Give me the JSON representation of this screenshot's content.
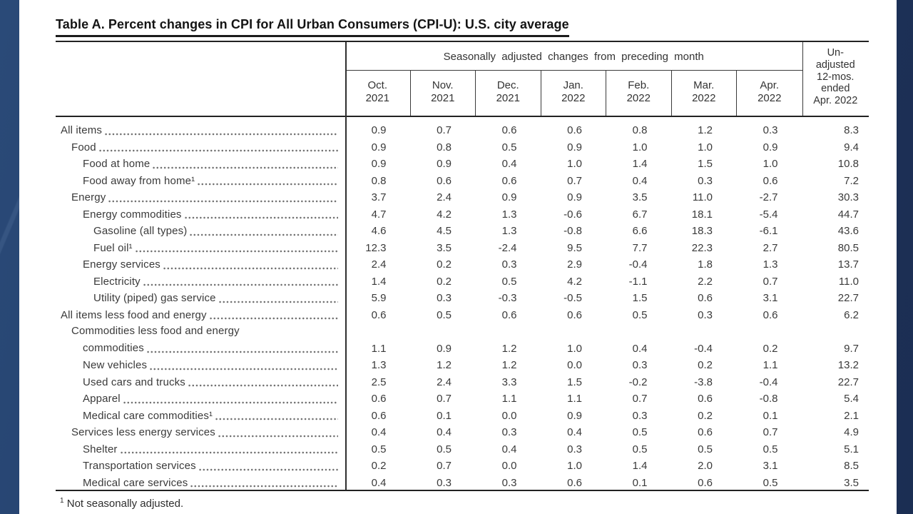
{
  "page": {
    "title": "Table A. Percent changes in CPI for All Urban Consumers (CPI-U): U.S. city average",
    "footnote_marker": "1",
    "footnote_text": " Not seasonally adjusted."
  },
  "colors": {
    "backdrop_navy": "#213a63",
    "backdrop_right_strip": "#1e3560",
    "page_background": "#ffffff",
    "rule_color": "#222222",
    "body_text": "#3a3a3a"
  },
  "table": {
    "spanner_label": "Seasonally adjusted changes from preceding month",
    "month_headers": [
      {
        "line1": "Oct.",
        "line2": "2021"
      },
      {
        "line1": "Nov.",
        "line2": "2021"
      },
      {
        "line1": "Dec.",
        "line2": "2021"
      },
      {
        "line1": "Jan.",
        "line2": "2022"
      },
      {
        "line1": "Feb.",
        "line2": "2022"
      },
      {
        "line1": "Mar.",
        "line2": "2022"
      },
      {
        "line1": "Apr.",
        "line2": "2022"
      }
    ],
    "unadjusted_header_lines": [
      "Un-",
      "adjusted",
      "12-mos.",
      "ended",
      "Apr. 2022"
    ],
    "rows": [
      {
        "label": "All items",
        "indent": 0,
        "values": [
          "0.9",
          "0.7",
          "0.6",
          "0.6",
          "0.8",
          "1.2",
          "0.3",
          "8.3"
        ]
      },
      {
        "label": "Food",
        "indent": 1,
        "values": [
          "0.9",
          "0.8",
          "0.5",
          "0.9",
          "1.0",
          "1.0",
          "0.9",
          "9.4"
        ]
      },
      {
        "label": "Food at home",
        "indent": 2,
        "values": [
          "0.9",
          "0.9",
          "0.4",
          "1.0",
          "1.4",
          "1.5",
          "1.0",
          "10.8"
        ]
      },
      {
        "label": "Food away from home¹",
        "indent": 2,
        "values": [
          "0.8",
          "0.6",
          "0.6",
          "0.7",
          "0.4",
          "0.3",
          "0.6",
          "7.2"
        ]
      },
      {
        "label": "Energy",
        "indent": 1,
        "values": [
          "3.7",
          "2.4",
          "0.9",
          "0.9",
          "3.5",
          "11.0",
          "-2.7",
          "30.3"
        ]
      },
      {
        "label": "Energy commodities",
        "indent": 2,
        "values": [
          "4.7",
          "4.2",
          "1.3",
          "-0.6",
          "6.7",
          "18.1",
          "-5.4",
          "44.7"
        ]
      },
      {
        "label": "Gasoline (all types)",
        "indent": 3,
        "values": [
          "4.6",
          "4.5",
          "1.3",
          "-0.8",
          "6.6",
          "18.3",
          "-6.1",
          "43.6"
        ]
      },
      {
        "label": "Fuel oil¹",
        "indent": 3,
        "values": [
          "12.3",
          "3.5",
          "-2.4",
          "9.5",
          "7.7",
          "22.3",
          "2.7",
          "80.5"
        ]
      },
      {
        "label": "Energy services",
        "indent": 2,
        "values": [
          "2.4",
          "0.2",
          "0.3",
          "2.9",
          "-0.4",
          "1.8",
          "1.3",
          "13.7"
        ]
      },
      {
        "label": "Electricity",
        "indent": 3,
        "values": [
          "1.4",
          "0.2",
          "0.5",
          "4.2",
          "-1.1",
          "2.2",
          "0.7",
          "11.0"
        ]
      },
      {
        "label": "Utility (piped) gas service",
        "indent": 3,
        "values": [
          "5.9",
          "0.3",
          "-0.3",
          "-0.5",
          "1.5",
          "0.6",
          "3.1",
          "22.7"
        ]
      },
      {
        "label": "All items less food and energy",
        "indent": 0,
        "values": [
          "0.6",
          "0.5",
          "0.6",
          "0.6",
          "0.5",
          "0.3",
          "0.6",
          "6.2"
        ]
      },
      {
        "label": "Commodities less food and energy",
        "label2": "commodities",
        "indent": 1,
        "values": [
          "1.1",
          "0.9",
          "1.2",
          "1.0",
          "0.4",
          "-0.4",
          "0.2",
          "9.7"
        ]
      },
      {
        "label": "New vehicles",
        "indent": 2,
        "values": [
          "1.3",
          "1.2",
          "1.2",
          "0.0",
          "0.3",
          "0.2",
          "1.1",
          "13.2"
        ]
      },
      {
        "label": "Used cars and trucks",
        "indent": 2,
        "values": [
          "2.5",
          "2.4",
          "3.3",
          "1.5",
          "-0.2",
          "-3.8",
          "-0.4",
          "22.7"
        ]
      },
      {
        "label": "Apparel",
        "indent": 2,
        "values": [
          "0.6",
          "0.7",
          "1.1",
          "1.1",
          "0.7",
          "0.6",
          "-0.8",
          "5.4"
        ]
      },
      {
        "label": "Medical care commodities¹",
        "indent": 2,
        "values": [
          "0.6",
          "0.1",
          "0.0",
          "0.9",
          "0.3",
          "0.2",
          "0.1",
          "2.1"
        ]
      },
      {
        "label": "Services less energy services",
        "indent": 1,
        "values": [
          "0.4",
          "0.4",
          "0.3",
          "0.4",
          "0.5",
          "0.6",
          "0.7",
          "4.9"
        ]
      },
      {
        "label": "Shelter",
        "indent": 2,
        "values": [
          "0.5",
          "0.5",
          "0.4",
          "0.3",
          "0.5",
          "0.5",
          "0.5",
          "5.1"
        ]
      },
      {
        "label": "Transportation services",
        "indent": 2,
        "values": [
          "0.2",
          "0.7",
          "0.0",
          "1.0",
          "1.4",
          "2.0",
          "3.1",
          "8.5"
        ]
      },
      {
        "label": "Medical care services",
        "indent": 2,
        "values": [
          "0.4",
          "0.3",
          "0.3",
          "0.6",
          "0.1",
          "0.6",
          "0.5",
          "3.5"
        ]
      }
    ]
  }
}
